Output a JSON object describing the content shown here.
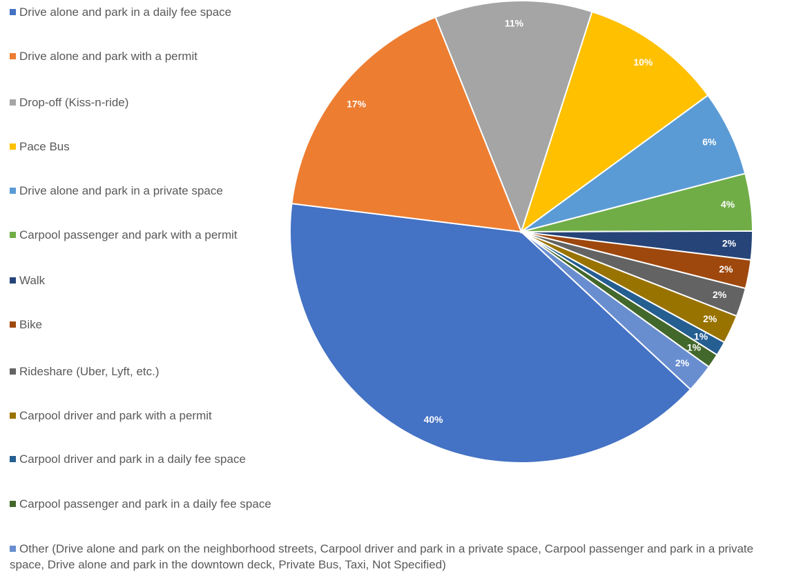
{
  "chart_data": {
    "type": "pie",
    "categories": [
      "Drive alone and park in a daily fee space",
      "Drive alone and park with a permit",
      "Drop-off (Kiss-n-ride)",
      "Pace Bus",
      "Drive alone and park in a private space",
      "Carpool passenger and park with a permit",
      "Walk",
      "Bike",
      "Rideshare (Uber, Lyft, etc.)",
      "Carpool driver and park with a permit",
      "Carpool driver and park in a daily fee space",
      "Carpool passenger and park in a daily fee space",
      "Other (Drive alone and park on the neighborhood streets, Carpool driver and park in a private space, Carpool passenger and park in a private space, Drive alone and park in the downtown deck, Private Bus, Taxi, Not Specified)"
    ],
    "values": [
      40,
      17,
      11,
      10,
      6,
      4,
      2,
      2,
      2,
      2,
      1,
      1,
      2
    ],
    "value_labels": [
      "40%",
      "17%",
      "11%",
      "10%",
      "6%",
      "4%",
      "2%",
      "2%",
      "2%",
      "2%",
      "1%",
      "1%",
      "2%"
    ],
    "colors": [
      "#4472c4",
      "#ed7d31",
      "#a5a5a5",
      "#ffc000",
      "#5b9bd5",
      "#70ad47",
      "#264478",
      "#9e480e",
      "#636363",
      "#997300",
      "#255e91",
      "#43682b",
      "#698ed0"
    ],
    "legend": "left"
  }
}
